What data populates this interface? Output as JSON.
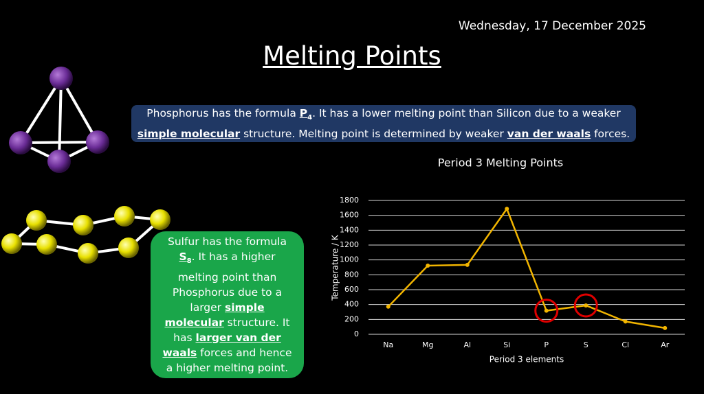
{
  "date": "Wednesday, 17 December 2025",
  "title": "Melting Points",
  "phosphorus_text": [
    "Phosphorus has the formula ",
    "P",
    "4",
    ". It has a lower melting point than Silicon due to a weaker ",
    "simple molecular",
    " structure. Melting point is determined by weaker ",
    "van der waals",
    " forces."
  ],
  "sulfur_text": [
    "Sulfur has the formula ",
    "S",
    "8",
    ". It has a higher melting point than Phosphorus due to a larger ",
    "simple molecular",
    " structure. It has ",
    "larger van der waals",
    " forces and hence a higher melting point."
  ],
  "chart_data": {
    "type": "line",
    "title": "Period 3 Melting Points",
    "x_label": "Period 3 elements",
    "y_label": "Temperature / K",
    "categories": [
      "Na",
      "Mg",
      "Al",
      "Si",
      "P",
      "S",
      "Cl",
      "Ar"
    ],
    "values": [
      371,
      923,
      933,
      1687,
      317,
      388,
      172,
      84
    ],
    "color": "#f2b500",
    "ylim": [
      0,
      1800
    ],
    "yticks": [
      0,
      200,
      400,
      600,
      800,
      1000,
      1200,
      1400,
      1600,
      1800
    ],
    "grid": true
  }
}
